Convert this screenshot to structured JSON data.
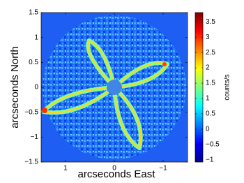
{
  "chart_data": {
    "type": "heatmap",
    "xlabel": "arcseconds East",
    "ylabel": "arcseconds North",
    "xlim": [
      1.5,
      -1.5
    ],
    "xticks": [
      1,
      0,
      {
        "value": -1,
        "label": "−1"
      }
    ],
    "ylim": [
      -1.5,
      1.5
    ],
    "yticks": [
      1.5,
      1,
      0.5,
      0,
      {
        "value": -0.5,
        "label": "−0.5"
      },
      {
        "value": -1,
        "label": "−1"
      },
      {
        "value": -1.5,
        "label": "−1.5"
      }
    ],
    "colorbar": {
      "label": "counts/s",
      "colormap": "jet",
      "clim": [
        -1.07,
        3.8
      ],
      "ticks": [
        3.5,
        3,
        2.5,
        2,
        1.5,
        1,
        0.5,
        0,
        {
          "value": -0.5,
          "label": "−0.5"
        },
        {
          "value": -1,
          "label": "−1"
        }
      ]
    }
  }
}
